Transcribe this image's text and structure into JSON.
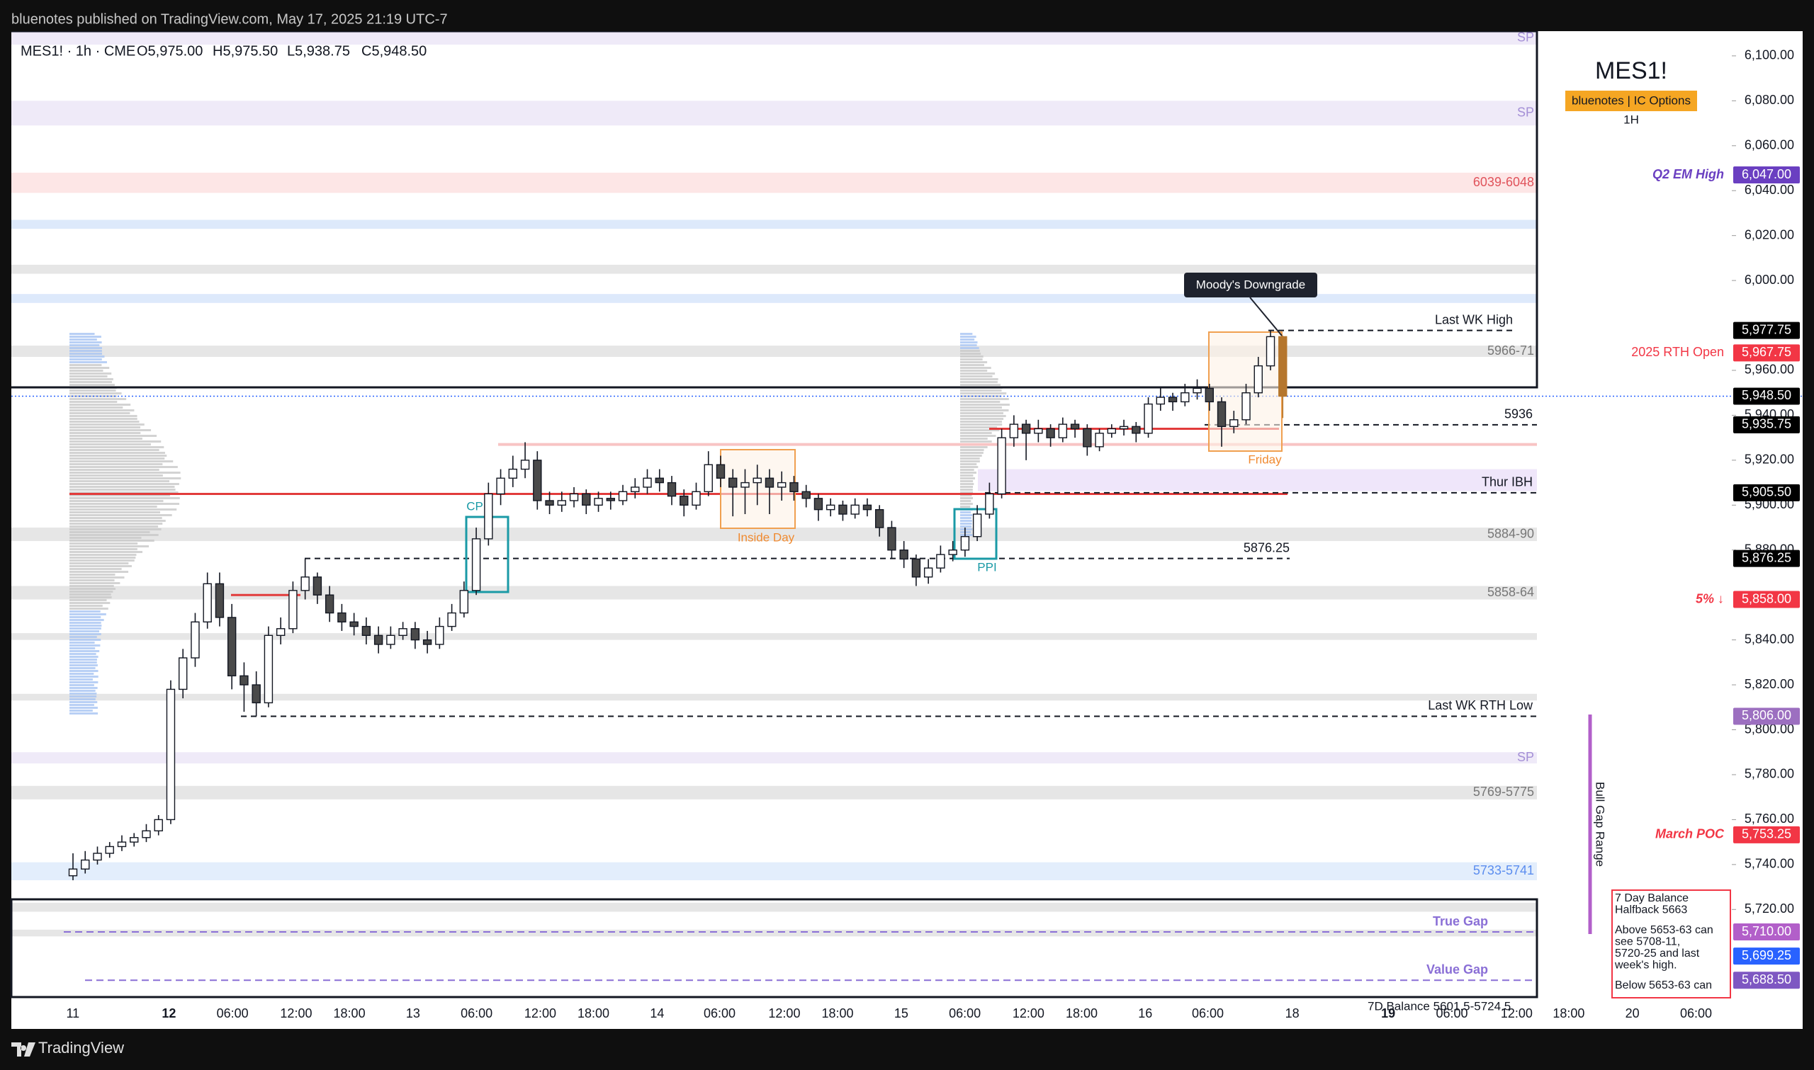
{
  "header": {
    "publisher": "bluenotes published on TradingView.com, May 17, 2025 21:19 UTC-7"
  },
  "legend": {
    "symbol": "MES1! · 1h · CME",
    "open": "O5,975.00",
    "high": "H5,975.50",
    "low": "L5,938.75",
    "close": "C5,948.50"
  },
  "watermark": {
    "symbol": "MES1!",
    "tag": "bluenotes | IC Options",
    "interval": "1H"
  },
  "footer": {
    "brand": "TradingView"
  },
  "price_axis": {
    "ylim": [
      5681,
      6111
    ],
    "ticks": [
      {
        "value": 6100,
        "label": "6,100.00"
      },
      {
        "value": 6080,
        "label": "6,080.00"
      },
      {
        "value": 6060,
        "label": "6,060.00"
      },
      {
        "value": 6040,
        "label": "6,040.00"
      },
      {
        "value": 6020,
        "label": "6,020.00"
      },
      {
        "value": 6000,
        "label": "6,000.00"
      },
      {
        "value": 5960,
        "label": "5,960.00"
      },
      {
        "value": 5940,
        "label": "5,940.00"
      },
      {
        "value": 5920,
        "label": "5,920.00"
      },
      {
        "value": 5900,
        "label": "5,900.00"
      },
      {
        "value": 5880,
        "label": "5,880.00"
      },
      {
        "value": 5840,
        "label": "5,840.00"
      },
      {
        "value": 5820,
        "label": "5,820.00"
      },
      {
        "value": 5800,
        "label": "5,800.00"
      },
      {
        "value": 5780,
        "label": "5,780.00"
      },
      {
        "value": 5760,
        "label": "5,760.00"
      },
      {
        "value": 5740,
        "label": "5,740.00"
      },
      {
        "value": 5720,
        "label": "5,720.00"
      }
    ]
  },
  "time_axis": [
    "11",
    "12",
    "06:00",
    "12:00",
    "18:00",
    "13",
    "06:00",
    "12:00",
    "18:00",
    "14",
    "06:00",
    "12:00",
    "18:00",
    "15",
    "06:00",
    "12:00",
    "18:00",
    "16",
    "06:00",
    "18",
    "19",
    "06:00",
    "12:00",
    "18:00",
    "20",
    "06:00"
  ],
  "candles": [
    [
      5735,
      5745,
      5733,
      5738
    ],
    [
      5738,
      5746,
      5736,
      5742
    ],
    [
      5742,
      5748,
      5740,
      5745
    ],
    [
      5745,
      5750,
      5743,
      5748
    ],
    [
      5748,
      5753,
      5746,
      5750
    ],
    [
      5750,
      5754,
      5748,
      5752
    ],
    [
      5752,
      5758,
      5750,
      5755
    ],
    [
      5755,
      5762,
      5753,
      5760
    ],
    [
      5760,
      5822,
      5758,
      5818
    ],
    [
      5818,
      5836,
      5814,
      5832
    ],
    [
      5832,
      5852,
      5828,
      5848
    ],
    [
      5848,
      5870,
      5845,
      5865
    ],
    [
      5865,
      5870,
      5846,
      5850
    ],
    [
      5850,
      5856,
      5818,
      5824
    ],
    [
      5824,
      5830,
      5808,
      5820
    ],
    [
      5820,
      5826,
      5806,
      5812
    ],
    [
      5812,
      5846,
      5810,
      5842
    ],
    [
      5842,
      5850,
      5838,
      5845
    ],
    [
      5845,
      5866,
      5843,
      5862
    ],
    [
      5862,
      5876,
      5858,
      5868
    ],
    [
      5868,
      5870,
      5856,
      5860
    ],
    [
      5860,
      5864,
      5848,
      5852
    ],
    [
      5852,
      5856,
      5844,
      5848
    ],
    [
      5848,
      5852,
      5842,
      5846
    ],
    [
      5846,
      5850,
      5838,
      5842
    ],
    [
      5842,
      5846,
      5834,
      5838
    ],
    [
      5838,
      5846,
      5836,
      5842
    ],
    [
      5842,
      5848,
      5840,
      5845
    ],
    [
      5845,
      5848,
      5836,
      5840
    ],
    [
      5840,
      5844,
      5834,
      5838
    ],
    [
      5838,
      5850,
      5836,
      5846
    ],
    [
      5846,
      5856,
      5844,
      5852
    ],
    [
      5852,
      5866,
      5850,
      5862
    ],
    [
      5862,
      5890,
      5860,
      5885
    ],
    [
      5885,
      5910,
      5882,
      5905
    ],
    [
      5905,
      5916,
      5900,
      5912
    ],
    [
      5912,
      5922,
      5908,
      5916
    ],
    [
      5916,
      5928,
      5912,
      5920
    ],
    [
      5920,
      5924,
      5898,
      5902
    ],
    [
      5902,
      5906,
      5896,
      5900
    ],
    [
      5900,
      5906,
      5897,
      5902
    ],
    [
      5902,
      5908,
      5899,
      5905
    ],
    [
      5905,
      5907,
      5896,
      5900
    ],
    [
      5900,
      5906,
      5897,
      5903
    ],
    [
      5903,
      5906,
      5898,
      5902
    ],
    [
      5902,
      5909,
      5900,
      5906
    ],
    [
      5906,
      5912,
      5903,
      5908
    ],
    [
      5908,
      5916,
      5905,
      5912
    ],
    [
      5912,
      5916,
      5906,
      5910
    ],
    [
      5910,
      5913,
      5900,
      5904
    ],
    [
      5904,
      5907,
      5895,
      5900
    ],
    [
      5900,
      5910,
      5898,
      5906
    ],
    [
      5906,
      5924,
      5904,
      5918
    ],
    [
      5918,
      5922,
      5908,
      5912
    ],
    [
      5912,
      5916,
      5895,
      5908
    ],
    [
      5908,
      5916,
      5896,
      5910
    ],
    [
      5910,
      5918,
      5900,
      5912
    ],
    [
      5912,
      5916,
      5896,
      5908
    ],
    [
      5908,
      5915,
      5902,
      5910
    ],
    [
      5910,
      5913,
      5902,
      5906
    ],
    [
      5906,
      5909,
      5899,
      5903
    ],
    [
      5903,
      5905,
      5893,
      5898
    ],
    [
      5898,
      5903,
      5895,
      5900
    ],
    [
      5900,
      5902,
      5893,
      5896
    ],
    [
      5896,
      5903,
      5894,
      5900
    ],
    [
      5900,
      5903,
      5895,
      5898
    ],
    [
      5898,
      5900,
      5886,
      5890
    ],
    [
      5890,
      5893,
      5876,
      5880
    ],
    [
      5880,
      5884,
      5872,
      5876
    ],
    [
      5876,
      5878,
      5864,
      5868
    ],
    [
      5868,
      5876,
      5865,
      5872
    ],
    [
      5872,
      5882,
      5870,
      5878
    ],
    [
      5878,
      5884,
      5875,
      5880
    ],
    [
      5880,
      5890,
      5877,
      5886
    ],
    [
      5886,
      5900,
      5884,
      5896
    ],
    [
      5896,
      5910,
      5894,
      5905
    ],
    [
      5905,
      5934,
      5903,
      5930
    ],
    [
      5930,
      5940,
      5926,
      5936
    ],
    [
      5936,
      5938,
      5920,
      5932
    ],
    [
      5932,
      5938,
      5928,
      5934
    ],
    [
      5934,
      5936,
      5926,
      5930
    ],
    [
      5930,
      5939,
      5928,
      5936
    ],
    [
      5936,
      5938,
      5930,
      5934
    ],
    [
      5934,
      5936,
      5922,
      5926
    ],
    [
      5926,
      5934,
      5924,
      5932
    ],
    [
      5932,
      5936,
      5930,
      5934
    ],
    [
      5934,
      5938,
      5931,
      5935
    ],
    [
      5935,
      5937,
      5928,
      5932
    ],
    [
      5932,
      5948,
      5930,
      5945
    ],
    [
      5945,
      5952,
      5942,
      5948
    ],
    [
      5948,
      5950,
      5942,
      5946
    ],
    [
      5946,
      5954,
      5944,
      5950
    ],
    [
      5950,
      5956,
      5947,
      5952
    ],
    [
      5952,
      5954,
      5942,
      5946
    ],
    [
      5946,
      5948,
      5926,
      5935
    ],
    [
      5935,
      5942,
      5932,
      5938
    ],
    [
      5938,
      5954,
      5936,
      5950
    ],
    [
      5950,
      5966,
      5948,
      5962
    ],
    [
      5962,
      5977.75,
      5960,
      5975
    ],
    [
      5975,
      5975.5,
      5938.75,
      5948.5
    ]
  ],
  "zones": [
    {
      "label": "SP",
      "lo": 6105,
      "hi": 6111,
      "color": "#efeaf8",
      "text_color": "#a48fd6"
    },
    {
      "label": "SP",
      "lo": 6069,
      "hi": 6080,
      "color": "#efeaf8",
      "text_color": "#a48fd6"
    },
    {
      "label": "6039-6048",
      "lo": 6039,
      "hi": 6048,
      "color": "#fde6e6",
      "text_color": "#e0525a"
    },
    {
      "label": "5966-71",
      "lo": 5966,
      "hi": 5971,
      "color": "#e6e6e6",
      "text_color": "#777777"
    },
    {
      "label": "5884-90",
      "lo": 5884,
      "hi": 5890,
      "color": "#e6e6e6",
      "text_color": "#777777"
    },
    {
      "label": "5858-64",
      "lo": 5858,
      "hi": 5864,
      "color": "#e6e6e6",
      "text_color": "#777777"
    },
    {
      "label": "SP",
      "lo": 5785,
      "hi": 5790,
      "color": "#efeaf8",
      "text_color": "#a48fd6"
    },
    {
      "label": "5769-5775",
      "lo": 5769,
      "hi": 5775,
      "color": "#e6e6e6",
      "text_color": "#777777"
    },
    {
      "label": "5733-5741",
      "lo": 5733,
      "hi": 5741,
      "color": "#e3eefc",
      "text_color": "#5b8def"
    }
  ],
  "bands": [
    {
      "lo": 6023,
      "hi": 6027,
      "color": "#dde9fb"
    },
    {
      "lo": 6003,
      "hi": 6007,
      "color": "#e6e6e6"
    },
    {
      "lo": 5990,
      "hi": 5994,
      "color": "#dde9fb"
    },
    {
      "lo": 5840,
      "hi": 5843,
      "color": "#e6e6e6"
    },
    {
      "lo": 5813,
      "hi": 5816,
      "color": "#e6e6e6"
    },
    {
      "lo": 5719,
      "hi": 5723,
      "color": "#e6e6e6"
    },
    {
      "lo": 5708,
      "hi": 5711,
      "color": "#e6e6e6"
    }
  ],
  "levels": [
    {
      "label": "Last WK High",
      "value": 5977.75
    },
    {
      "label": "5936",
      "value": 5935.75
    },
    {
      "label": "Thur IBH",
      "value": 5905.5
    },
    {
      "label": "5876.25",
      "value": 5876.25
    },
    {
      "label": "Last WK RTH Low",
      "value": 5806
    },
    {
      "label": "True Gap",
      "value": 5710
    },
    {
      "label": "Value Gap",
      "value": 5688.5
    }
  ],
  "balance_note": "7D Balance 5601.5-5724.5",
  "price_badges": [
    {
      "value": 6047,
      "label": "6,047.00",
      "color": "#6a3fc1",
      "note": "Q2 EM High"
    },
    {
      "value": 5977.75,
      "label": "5,977.75",
      "color": "#000000"
    },
    {
      "value": 5967.75,
      "label": "5,967.75",
      "color": "#f23645",
      "note": "2025 RTH Open"
    },
    {
      "value": 5948.5,
      "label": "5,948.50",
      "color": "#000000"
    },
    {
      "value": 5935.75,
      "label": "5,935.75",
      "color": "#000000"
    },
    {
      "value": 5905.5,
      "label": "5,905.50",
      "color": "#000000"
    },
    {
      "value": 5876.25,
      "label": "5,876.25",
      "color": "#000000"
    },
    {
      "value": 5858,
      "label": "5,858.00",
      "color": "#f23645",
      "note": "5% ↓"
    },
    {
      "value": 5806,
      "label": "5,806.00",
      "color": "#9c6fc0"
    },
    {
      "value": 5753.25,
      "label": "5,753.25",
      "color": "#f23645",
      "note": "March POC"
    },
    {
      "value": 5710,
      "label": "5,710.00",
      "color": "#b25fc9"
    },
    {
      "value": 5699.25,
      "label": "5,699.25",
      "color": "#2962ff"
    },
    {
      "value": 5688.5,
      "label": "5,688.50",
      "color": "#7e57c2"
    }
  ],
  "annotations": {
    "event": "Moody's Downgrade",
    "friday": "Friday",
    "inside_day": "Inside Day",
    "cpi": "CP",
    "ppi": "PPI",
    "bull_gap": "Bull Gap Range"
  },
  "note_box": [
    "7 Day Balance",
    "Halfback 5663",
    "Above 5653-63 can",
    "see 5708-11,",
    "5720-25 and last",
    "week's high.",
    "Below 5653-63 can"
  ]
}
